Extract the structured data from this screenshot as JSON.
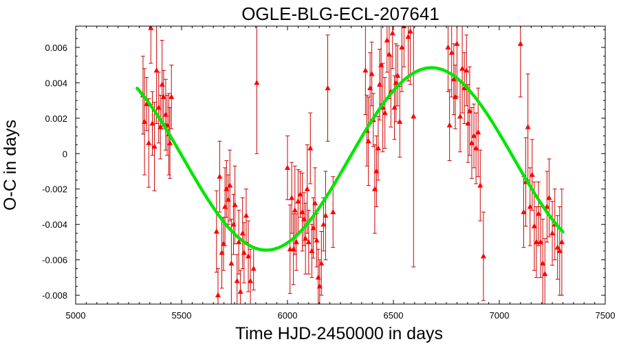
{
  "chart_data": {
    "type": "scatter",
    "title": "OGLE-BLG-ECL-207641",
    "xlabel": "Time HJD-2450000 in days",
    "ylabel": "O-C in days",
    "xlim": [
      5000,
      7500
    ],
    "ylim": [
      -0.0085,
      0.0072
    ],
    "xticks": [
      5000,
      5500,
      6000,
      6500,
      7000,
      7500
    ],
    "xtick_labels": [
      "5000",
      "5500",
      "6000",
      "6500",
      "7000",
      "7500"
    ],
    "yticks": [
      0.006,
      0.004,
      0.002,
      0,
      -0.002,
      -0.004,
      -0.006,
      -0.008
    ],
    "ytick_labels": [
      "0.006",
      "0.004",
      "0.002",
      "0",
      "-0.002",
      "-0.004",
      "-0.006",
      "-0.008"
    ],
    "grid": false,
    "legend": "none",
    "colors": {
      "points": "#ff0000",
      "errorbars": "#cc0000",
      "fit": "#00e600",
      "frame": "#000000"
    },
    "series": [
      {
        "kind": "points_with_errorbars",
        "points": [
          {
            "x": 5318,
            "y": 0.0033,
            "err": 0.0022
          },
          {
            "x": 5325,
            "y": 0.0018,
            "err": 0.003
          },
          {
            "x": 5335,
            "y": 0.0028,
            "err": 0.0015
          },
          {
            "x": 5345,
            "y": 0.0006,
            "err": 0.0025
          },
          {
            "x": 5355,
            "y": 0.0071,
            "err": 0.002
          },
          {
            "x": 5362,
            "y": 0.0017,
            "err": 0.0018
          },
          {
            "x": 5372,
            "y": 0.0004,
            "err": 0.0025
          },
          {
            "x": 5382,
            "y": 0.0047,
            "err": 0.003
          },
          {
            "x": 5392,
            "y": 0.0026,
            "err": 0.002
          },
          {
            "x": 5400,
            "y": 0.0015,
            "err": 0.0018
          },
          {
            "x": 5408,
            "y": 0.0039,
            "err": 0.0025
          },
          {
            "x": 5415,
            "y": 0.0032,
            "err": 0.0015
          },
          {
            "x": 5425,
            "y": 0.0022,
            "err": 0.002
          },
          {
            "x": 5432,
            "y": 0.0016,
            "err": 0.0017
          },
          {
            "x": 5440,
            "y": 0.0011,
            "err": 0.0023
          },
          {
            "x": 5445,
            "y": 0.0006,
            "err": 0.002
          },
          {
            "x": 5452,
            "y": 0.0032,
            "err": 0.0018
          },
          {
            "x": 5665,
            "y": -0.0044,
            "err": 0.0023
          },
          {
            "x": 5672,
            "y": -0.008,
            "err": 0.0015
          },
          {
            "x": 5680,
            "y": -0.0013,
            "err": 0.002
          },
          {
            "x": 5690,
            "y": -0.0056,
            "err": 0.002
          },
          {
            "x": 5698,
            "y": -0.0051,
            "err": 0.0015
          },
          {
            "x": 5705,
            "y": -0.003,
            "err": 0.0022
          },
          {
            "x": 5712,
            "y": -0.002,
            "err": 0.0016
          },
          {
            "x": 5720,
            "y": -0.0026,
            "err": 0.0014
          },
          {
            "x": 5728,
            "y": -0.0018,
            "err": 0.002
          },
          {
            "x": 5735,
            "y": -0.0062,
            "err": 0.0025
          },
          {
            "x": 5745,
            "y": -0.004,
            "err": 0.0017
          },
          {
            "x": 5752,
            "y": -0.0029,
            "err": 0.0022
          },
          {
            "x": 5762,
            "y": -0.0072,
            "err": 0.0015
          },
          {
            "x": 5770,
            "y": -0.005,
            "err": 0.0018
          },
          {
            "x": 5778,
            "y": -0.0078,
            "err": 0.0012
          },
          {
            "x": 5788,
            "y": -0.0045,
            "err": 0.002
          },
          {
            "x": 5795,
            "y": -0.0056,
            "err": 0.0017
          },
          {
            "x": 5805,
            "y": -0.0035,
            "err": 0.0015
          },
          {
            "x": 5815,
            "y": -0.0058,
            "err": 0.002
          },
          {
            "x": 5825,
            "y": -0.0072,
            "err": 0.0018
          },
          {
            "x": 5840,
            "y": -0.0065,
            "err": 0.0012
          },
          {
            "x": 5855,
            "y": 0.004,
            "err": 0.004
          },
          {
            "x": 6000,
            "y": -0.0008,
            "err": 0.0018
          },
          {
            "x": 6012,
            "y": -0.0054,
            "err": 0.0025
          },
          {
            "x": 6020,
            "y": -0.0025,
            "err": 0.002
          },
          {
            "x": 6028,
            "y": -0.0054,
            "err": 0.002
          },
          {
            "x": 6035,
            "y": -0.0032,
            "err": 0.0025
          },
          {
            "x": 6042,
            "y": -0.005,
            "err": 0.0016
          },
          {
            "x": 6050,
            "y": -0.0027,
            "err": 0.0018
          },
          {
            "x": 6060,
            "y": -0.0023,
            "err": 0.0013
          },
          {
            "x": 6070,
            "y": -0.0033,
            "err": 0.0022
          },
          {
            "x": 6078,
            "y": -0.0037,
            "err": 0.0015
          },
          {
            "x": 6085,
            "y": -0.0048,
            "err": 0.002
          },
          {
            "x": 6093,
            "y": -0.002,
            "err": 0.0025
          },
          {
            "x": 6100,
            "y": -0.005,
            "err": 0.0018
          },
          {
            "x": 6108,
            "y": 0.0003,
            "err": 0.002
          },
          {
            "x": 6115,
            "y": -0.0055,
            "err": 0.0015
          },
          {
            "x": 6122,
            "y": -0.0042,
            "err": 0.0017
          },
          {
            "x": 6130,
            "y": -0.0028,
            "err": 0.002
          },
          {
            "x": 6138,
            "y": -0.0049,
            "err": 0.0015
          },
          {
            "x": 6145,
            "y": -0.007,
            "err": 0.0016
          },
          {
            "x": 6152,
            "y": -0.0075,
            "err": 0.0015
          },
          {
            "x": 6160,
            "y": -0.0062,
            "err": 0.0018
          },
          {
            "x": 6170,
            "y": -0.004,
            "err": 0.0015
          },
          {
            "x": 6180,
            "y": -0.0035,
            "err": 0.0025
          },
          {
            "x": 6190,
            "y": 0.0037,
            "err": 0.003
          },
          {
            "x": 6215,
            "y": -0.0033,
            "err": 0.002
          },
          {
            "x": 6368,
            "y": 0.0047,
            "err": 0.0025
          },
          {
            "x": 6375,
            "y": 0.0013,
            "err": 0.002
          },
          {
            "x": 6382,
            "y": 0.0007,
            "err": 0.0025
          },
          {
            "x": 6390,
            "y": 0.0037,
            "err": 0.002
          },
          {
            "x": 6398,
            "y": 0.0045,
            "err": 0.0018
          },
          {
            "x": 6405,
            "y": 0.0019,
            "err": 0.0015
          },
          {
            "x": 6412,
            "y": -0.002,
            "err": 0.0025
          },
          {
            "x": 6420,
            "y": -0.001,
            "err": 0.002
          },
          {
            "x": 6428,
            "y": 0.0003,
            "err": 0.0018
          },
          {
            "x": 6435,
            "y": 0.0039,
            "err": 0.002
          },
          {
            "x": 6442,
            "y": 0.005,
            "err": 0.0022
          },
          {
            "x": 6450,
            "y": 0.0026,
            "err": 0.0025
          },
          {
            "x": 6460,
            "y": 0.0023,
            "err": 0.002
          },
          {
            "x": 6470,
            "y": 0.0064,
            "err": 0.0018
          },
          {
            "x": 6480,
            "y": 0.0056,
            "err": 0.0025
          },
          {
            "x": 6488,
            "y": 0.0035,
            "err": 0.002
          },
          {
            "x": 6496,
            "y": 0.0068,
            "err": 0.002
          },
          {
            "x": 6505,
            "y": 0.0026,
            "err": 0.0018
          },
          {
            "x": 6512,
            "y": 0.004,
            "err": 0.0022
          },
          {
            "x": 6520,
            "y": 0.0044,
            "err": 0.0017
          },
          {
            "x": 6530,
            "y": 0.0018,
            "err": 0.002
          },
          {
            "x": 6540,
            "y": 0.006,
            "err": 0.0025
          },
          {
            "x": 6550,
            "y": 0.0072,
            "err": 0.0023
          },
          {
            "x": 6570,
            "y": 0.0066,
            "err": 0.0025
          },
          {
            "x": 6580,
            "y": 0.0069,
            "err": 0.003
          },
          {
            "x": 6595,
            "y": 0.0021,
            "err": 0.0085
          },
          {
            "x": 6758,
            "y": 0.006,
            "err": 0.0025
          },
          {
            "x": 6765,
            "y": 0.0016,
            "err": 0.002
          },
          {
            "x": 6775,
            "y": 0.0057,
            "err": 0.0025
          },
          {
            "x": 6785,
            "y": 0.0042,
            "err": 0.002
          },
          {
            "x": 6792,
            "y": 0.0032,
            "err": 0.0018
          },
          {
            "x": 6800,
            "y": 0.0062,
            "err": 0.003
          },
          {
            "x": 6815,
            "y": 0.0021,
            "err": 0.002
          },
          {
            "x": 6825,
            "y": 0.0048,
            "err": 0.0025
          },
          {
            "x": 6835,
            "y": 0.0037,
            "err": 0.002
          },
          {
            "x": 6845,
            "y": 0.0047,
            "err": 0.002
          },
          {
            "x": 6852,
            "y": 0.0017,
            "err": 0.0022
          },
          {
            "x": 6860,
            "y": 0.0024,
            "err": 0.0025
          },
          {
            "x": 6870,
            "y": 0.0006,
            "err": 0.002
          },
          {
            "x": 6880,
            "y": 0.001,
            "err": 0.0018
          },
          {
            "x": 6890,
            "y": 0.0003,
            "err": 0.002
          },
          {
            "x": 6900,
            "y": 0.0012,
            "err": 0.0025
          },
          {
            "x": 6910,
            "y": -0.0018,
            "err": 0.002
          },
          {
            "x": 6925,
            "y": -0.0058,
            "err": 0.0025
          },
          {
            "x": 7100,
            "y": 0.0062,
            "err": 0.003
          },
          {
            "x": 7115,
            "y": -0.0033,
            "err": 0.002
          },
          {
            "x": 7125,
            "y": -0.0016,
            "err": 0.0025
          },
          {
            "x": 7135,
            "y": 0.0015,
            "err": 0.003
          },
          {
            "x": 7145,
            "y": -0.003,
            "err": 0.0022
          },
          {
            "x": 7155,
            "y": -0.0012,
            "err": 0.002
          },
          {
            "x": 7165,
            "y": -0.0041,
            "err": 0.0025
          },
          {
            "x": 7175,
            "y": -0.005,
            "err": 0.002
          },
          {
            "x": 7185,
            "y": -0.0034,
            "err": 0.0018
          },
          {
            "x": 7195,
            "y": -0.005,
            "err": 0.002
          },
          {
            "x": 7205,
            "y": -0.0062,
            "err": 0.0025
          },
          {
            "x": 7215,
            "y": -0.0068,
            "err": 0.002
          },
          {
            "x": 7225,
            "y": -0.003,
            "err": 0.002
          },
          {
            "x": 7235,
            "y": -0.0025,
            "err": 0.0022
          },
          {
            "x": 7250,
            "y": -0.0045,
            "err": 0.0018
          },
          {
            "x": 7262,
            "y": -0.004,
            "err": 0.002
          },
          {
            "x": 7275,
            "y": -0.0053,
            "err": 0.0018
          },
          {
            "x": 7285,
            "y": -0.0055,
            "err": 0.0025
          },
          {
            "x": 7295,
            "y": -0.005,
            "err": 0.003
          }
        ]
      },
      {
        "kind": "fit_curve",
        "x_range": [
          5290,
          7300
        ],
        "model": "sinusoid",
        "amplitude": 0.00515,
        "offset": -0.0003,
        "period": 1560,
        "peak_x": 6680
      }
    ]
  }
}
